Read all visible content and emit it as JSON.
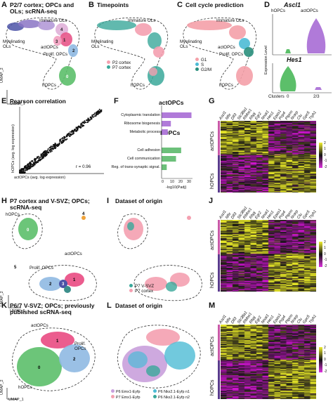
{
  "panels": {
    "A": {
      "letter": "A",
      "title": "P2/7 cortex; OPCs and OLs; scRNA-seq",
      "labels": [
        "Immature OLs",
        "Myelinating OLs",
        "actOPCs",
        "Prolif. OPCs",
        "hOPCs"
      ],
      "umap_x": "UMAP_1",
      "umap_y": "UMAP_2",
      "clusters": [
        "0",
        "1",
        "2",
        "3",
        "4",
        "5"
      ]
    },
    "B": {
      "letter": "B",
      "title": "Timepoints",
      "labels": [
        "Immature OLs",
        "Myelinating OLs",
        "hOPCs"
      ],
      "legend": [
        {
          "label": "P2 cortex",
          "color": "#f4a0b0"
        },
        {
          "label": "P7 cortex",
          "color": "#3aa89a"
        }
      ]
    },
    "C": {
      "letter": "C",
      "title": "Cell cycle prediction",
      "labels": [
        "Immature OLs",
        "Myelinating OLs",
        "actOPCs",
        "Prolif. OPCs",
        "hOPCs"
      ],
      "legend": [
        {
          "label": "G1",
          "color": "#f4a0a8"
        },
        {
          "label": "S",
          "color": "#4dbbd5"
        },
        {
          "label": "G2/M",
          "color": "#2a8f7c"
        }
      ]
    },
    "D": {
      "letter": "D",
      "genes": [
        "Ascl1",
        "Hes1"
      ],
      "groups": [
        "hOPCs",
        "actOPCs"
      ],
      "ylabel": "Expression Level",
      "xlabel": "Clusters",
      "ticks": [
        "0",
        "2/3"
      ]
    },
    "E": {
      "letter": "E",
      "title": "Pearson correlation",
      "xlabel": "actOPCs (avg. log expression)",
      "ylabel": "hOPCs (avg. log expression)",
      "r": "r = 0.96"
    },
    "F": {
      "letter": "F",
      "group1": "actOPCs",
      "group2": "hOPCs",
      "xlabel": "-log10(Padj)",
      "xticks": [
        "0",
        "10",
        "20",
        "30"
      ]
    },
    "G": {
      "letter": "G",
      "row_labels": [
        "actOPCs",
        "hOPCs"
      ],
      "scale": [
        "2",
        "1",
        "0",
        "-1",
        "-2"
      ]
    },
    "H": {
      "letter": "H",
      "title": "P7 cortex and V-SVZ; OPCs; scRNA-seq",
      "labels": [
        "hOPCs",
        "actOPCs",
        "Prolif. OPCs"
      ],
      "clusters": [
        "0",
        "1",
        "2",
        "3",
        "4",
        "5"
      ],
      "umap_x": "UMAP_1",
      "umap_y": "UMAP_2"
    },
    "I": {
      "letter": "I",
      "title": "Dataset of origin",
      "legend": [
        {
          "label": "P7 V-SVZ",
          "color": "#3aa89a"
        },
        {
          "label": "P7 cortex",
          "color": "#f4a0b0"
        }
      ]
    },
    "J": {
      "letter": "J",
      "row_labels": [
        "actOPCs",
        "hOPCs"
      ],
      "scale": [
        "2",
        "1",
        "0",
        "-1",
        "-2"
      ]
    },
    "K": {
      "letter": "K",
      "title": "P6/7 V-SVZ; OPCs; previously published scRNA-seq",
      "labels": [
        "actOPCs",
        "Prolif. OPCs",
        "hOPCs"
      ],
      "clusters": [
        "0",
        "1",
        "2"
      ],
      "umap_x": "UMAP_1",
      "umap_y": "UMAP_2"
    },
    "L": {
      "letter": "L",
      "title": "Dataset of origin",
      "legend": [
        {
          "label": "P6 Emx1-Eyfp",
          "color": "#c9a0dc"
        },
        {
          "label": "P6 Nkx2.1-Eyfp n1",
          "color": "#4dbbd5"
        },
        {
          "label": "P7 Emx1-Eyfp",
          "color": "#f4a0b0"
        },
        {
          "label": "P6 Nkx2.1-Eyfp n2",
          "color": "#3aa89a"
        }
      ]
    },
    "M": {
      "letter": "M",
      "row_labels": [
        "actOPCs",
        "hOPCs"
      ],
      "scale": [
        "2",
        "1",
        "0",
        "-1",
        "-2"
      ]
    }
  },
  "heatmap_genes": [
    "Ascl1",
    "Nfix",
    "Dll3",
    "Slc38a1",
    "Rbfox1",
    "Rbpj",
    "Egr2",
    "Nnat1",
    "Hes1",
    "Epas1",
    "Pcp4",
    "Ptprm",
    "Nrarp",
    "Clu",
    "Gpc5",
    "Ttyh1"
  ],
  "chart_data": [
    {
      "type": "bar",
      "panel": "F",
      "title": "",
      "xlabel": "-log10(Padj)",
      "xlim": [
        0,
        30
      ],
      "groups": [
        {
          "name": "actOPCs",
          "color": "#b07ad9",
          "categories": [
            "Cytoplasmic translation",
            "Ribosome biogenesis",
            "Metabolic process"
          ],
          "values": [
            29,
            9,
            6
          ]
        },
        {
          "name": "hOPCs",
          "color": "#6cc07a",
          "categories": [
            "Cell adhesion",
            "Cell communication",
            "Reg. of trans-synaptic signal."
          ],
          "values": [
            19,
            14,
            5
          ]
        }
      ]
    },
    {
      "type": "scatter",
      "panel": "E",
      "xlabel": "actOPCs (avg. log expression)",
      "ylabel": "hOPCs (avg. log expression)",
      "annotation": "r = 0.96",
      "series": [
        {
          "values": [
            [
              0.2,
              0.3
            ],
            [
              0.5,
              0.4
            ],
            [
              0.8,
              0.9
            ],
            [
              1.1,
              1.0
            ],
            [
              1.5,
              1.6
            ],
            [
              2.0,
              1.9
            ],
            [
              2.5,
              2.6
            ],
            [
              3.0,
              2.8
            ]
          ]
        }
      ]
    }
  ],
  "colors": {
    "cluster0": "#5cbf6a",
    "cluster1": "#e73f7a",
    "cluster2": "#8fb9e2",
    "cluster3": "#4c53a7",
    "cluster4": "#f0a33a",
    "cluster5": "#3d8f8c",
    "p2": "#f4a0b0",
    "p7": "#3aa89a"
  }
}
